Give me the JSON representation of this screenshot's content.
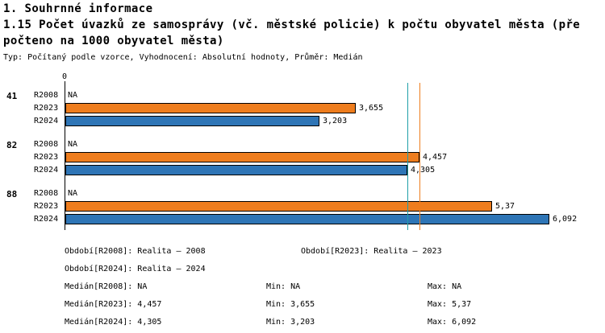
{
  "header": {
    "title": "1. Souhrnné informace",
    "subtitle_line1": "1.15 Počet úvazků ze samosprávy (vč. městské policie) k počtu obyvatel města (pře",
    "subtitle_line2": "počteno na 1000 obyvatel města)",
    "meta": "Typ: Počítaný podle vzorce, Vyhodnocení: Absolutní hodnoty, Průměr: Medián"
  },
  "chart_data": {
    "type": "bar",
    "orientation": "horizontal",
    "axis_zero_label": "0",
    "x_axis": {
      "min": 0
    },
    "groups": [
      {
        "label": "41",
        "rows": [
          {
            "series": "R2008",
            "value": null,
            "display": "NA"
          },
          {
            "series": "R2023",
            "value": 3.655,
            "display": "3,655"
          },
          {
            "series": "R2024",
            "value": 3.203,
            "display": "3,203"
          }
        ]
      },
      {
        "label": "82",
        "rows": [
          {
            "series": "R2008",
            "value": null,
            "display": "NA"
          },
          {
            "series": "R2023",
            "value": 4.457,
            "display": "4,457"
          },
          {
            "series": "R2024",
            "value": 4.305,
            "display": "4,305"
          }
        ]
      },
      {
        "label": "88",
        "rows": [
          {
            "series": "R2008",
            "value": null,
            "display": "NA"
          },
          {
            "series": "R2023",
            "value": 5.37,
            "display": "5,37"
          },
          {
            "series": "R2024",
            "value": 6.092,
            "display": "6,092"
          }
        ]
      }
    ],
    "series_colors": {
      "R2023": "#ee7d1e",
      "R2024": "#2e75b6"
    },
    "median_lines": [
      {
        "name": "Medián[R2024]",
        "value": 4.305,
        "display": "4,305",
        "color": "#1f9fa8"
      },
      {
        "name": "Medián[R2023]",
        "value": 4.457,
        "display": "4,457",
        "color": "#ee7d1e"
      }
    ]
  },
  "footer": {
    "obdobi_r2008": "Období[R2008]: Realita – 2008",
    "obdobi_r2023": "Období[R2023]: Realita – 2023",
    "obdobi_r2024": "Období[R2024]: Realita – 2024",
    "median_r2008": "Medián[R2008]: NA",
    "min_r2008": "Min: NA",
    "max_r2008": "Max: NA",
    "median_r2023": "Medián[R2023]: 4,457",
    "min_r2023": "Min: 3,655",
    "max_r2023": "Max: 5,37",
    "median_r2024": "Medián[R2024]: 4,305",
    "min_r2024": "Min: 3,203",
    "max_r2024": "Max: 6,092"
  }
}
